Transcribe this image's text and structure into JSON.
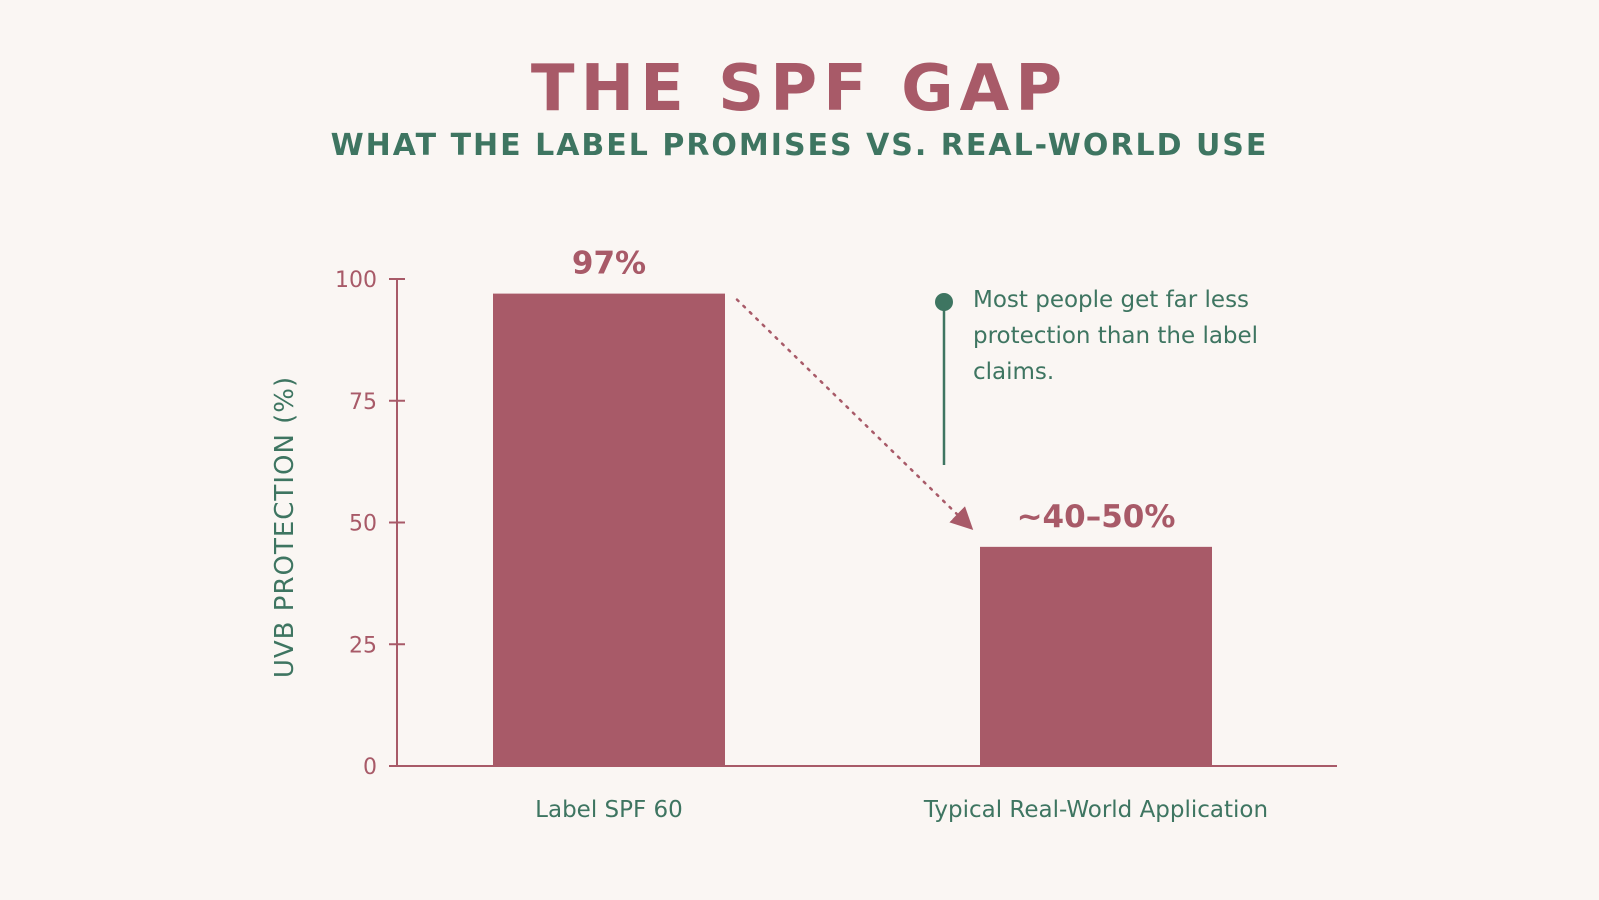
{
  "chart_data": {
    "type": "bar",
    "title": "THE SPF GAP",
    "subtitle": "WHAT THE LABEL PROMISES VS. REAL-WORLD USE",
    "ylabel": "UVB PROTECTION (%)",
    "xlabel": "",
    "ylim": [
      0,
      100
    ],
    "yticks": [
      0,
      25,
      50,
      75,
      100
    ],
    "grid": false,
    "categories": [
      "Label SPF 60",
      "Typical Real-World Application"
    ],
    "values": [
      97,
      45
    ],
    "data_labels": [
      "97%",
      "~40–50%"
    ],
    "annotation": "Most people get far less protection than the label claims.",
    "colors": {
      "bar": "#a85a68",
      "accent_text": "#a85a68",
      "secondary_text": "#3e7561",
      "background": "#faf6f3"
    }
  }
}
